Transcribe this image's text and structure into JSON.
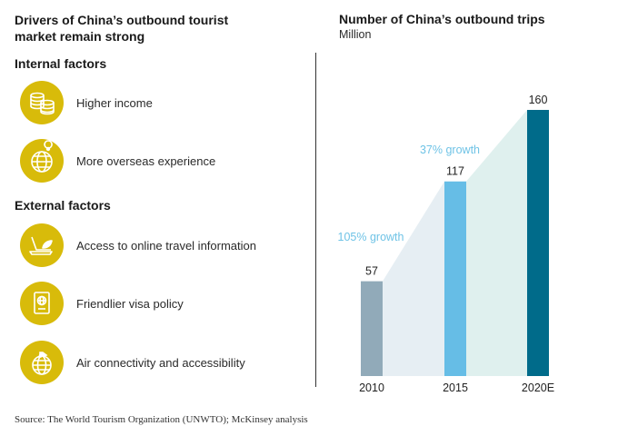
{
  "left": {
    "title_line1": "Drivers of China’s outbound tourist",
    "title_line2": "market remain strong",
    "internal_heading": "Internal factors",
    "external_heading": "External factors",
    "internal_items": [
      {
        "label": "Higher income",
        "icon": "coins-icon"
      },
      {
        "label": "More overseas experience",
        "icon": "globe-icon"
      }
    ],
    "external_items": [
      {
        "label": "Access to online travel information",
        "icon": "laptop-icon"
      },
      {
        "label": "Friendlier visa policy",
        "icon": "passport-icon"
      },
      {
        "label": "Air connectivity and accessibility",
        "icon": "airplane-globe-icon"
      }
    ],
    "icon_circle_color": "#d8bb0a"
  },
  "chart_data": {
    "type": "bar",
    "title": "Number of China’s outbound trips",
    "subtitle": "Million",
    "categories": [
      "2010",
      "2015",
      "2020E"
    ],
    "values": [
      57,
      117,
      160
    ],
    "value_labels": [
      "57",
      "117",
      "160"
    ],
    "bar_colors": [
      "#91aab9",
      "#66bde6",
      "#006b8a"
    ],
    "growth_annotations": [
      {
        "text": "105% growth",
        "between": [
          "2010",
          "2015"
        ]
      },
      {
        "text": "37% growth",
        "between": [
          "2015",
          "2020E"
        ]
      }
    ],
    "annotation_color": "#6fc3e6",
    "ylim": [
      0,
      160
    ],
    "xlabel": "",
    "ylabel": "",
    "grid": false
  },
  "source": "Source: The World Tourism Organization (UNWTO); McKinsey analysis"
}
